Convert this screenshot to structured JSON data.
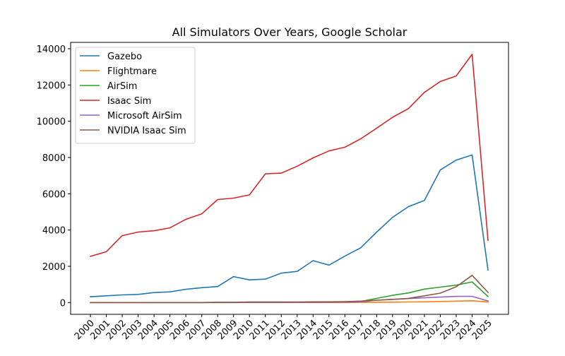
{
  "chart_data": {
    "type": "line",
    "title": "All Simulators Over Years, Google Scholar",
    "xlabel": "",
    "ylabel": "",
    "x": [
      "2000",
      "2001",
      "2002",
      "2003",
      "2004",
      "2005",
      "2006",
      "2007",
      "2008",
      "2009",
      "2010",
      "2011",
      "2012",
      "2013",
      "2014",
      "2015",
      "2016",
      "2017",
      "2018",
      "2019",
      "2020",
      "2021",
      "2022",
      "2023",
      "2024",
      "2025"
    ],
    "ylim": [
      -650,
      14350
    ],
    "yticks": [
      0,
      2000,
      4000,
      6000,
      8000,
      10000,
      12000,
      14000
    ],
    "grid": false,
    "legend_position": "upper-left",
    "series": [
      {
        "name": "Gazebo",
        "color": "#1f77b4",
        "values": [
          320,
          370,
          420,
          450,
          550,
          590,
          730,
          820,
          880,
          1430,
          1250,
          1290,
          1620,
          1720,
          2310,
          2060,
          2560,
          3020,
          3890,
          4700,
          5290,
          5630,
          7310,
          7860,
          8140,
          1790
        ]
      },
      {
        "name": "Flightmare",
        "color": "#ff7f0e",
        "values": [
          0,
          0,
          0,
          0,
          0,
          0,
          0,
          0,
          0,
          0,
          0,
          0,
          0,
          0,
          0,
          0,
          0,
          10,
          15,
          20,
          30,
          40,
          60,
          80,
          100,
          30
        ]
      },
      {
        "name": "AirSim",
        "color": "#2ca02c",
        "values": [
          0,
          0,
          0,
          0,
          0,
          0,
          0,
          0,
          10,
          10,
          10,
          10,
          10,
          20,
          20,
          20,
          30,
          60,
          230,
          400,
          530,
          740,
          850,
          960,
          1140,
          330
        ]
      },
      {
        "name": "Isaac Sim",
        "color": "#d62728",
        "values": [
          2550,
          2800,
          3690,
          3890,
          3960,
          4120,
          4590,
          4890,
          5680,
          5760,
          5940,
          7100,
          7140,
          7520,
          7980,
          8360,
          8570,
          9030,
          9620,
          10220,
          10700,
          11590,
          12190,
          12500,
          13690,
          3430
        ]
      },
      {
        "name": "Microsoft AirSim",
        "color": "#9467bd",
        "values": [
          0,
          0,
          0,
          0,
          0,
          0,
          0,
          0,
          0,
          0,
          10,
          10,
          10,
          10,
          10,
          20,
          20,
          40,
          130,
          180,
          220,
          260,
          300,
          340,
          340,
          90
        ]
      },
      {
        "name": "NVIDIA Isaac Sim",
        "color": "#8c564b",
        "values": [
          0,
          0,
          0,
          0,
          0,
          0,
          0,
          0,
          10,
          10,
          30,
          30,
          30,
          30,
          40,
          40,
          50,
          80,
          130,
          170,
          230,
          370,
          520,
          870,
          1500,
          560
        ]
      }
    ]
  }
}
